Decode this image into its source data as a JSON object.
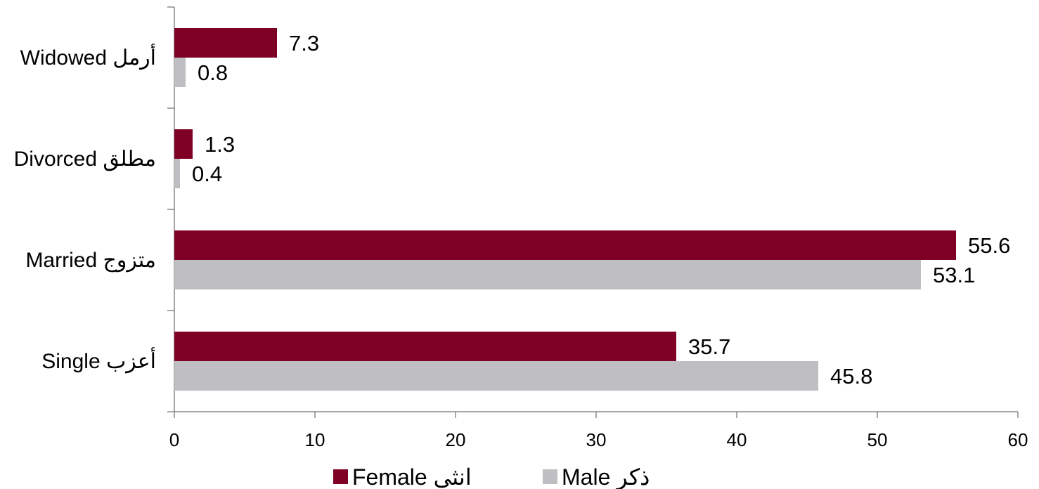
{
  "chart_data": {
    "type": "bar",
    "orientation": "horizontal",
    "categories": [
      "Widowed  أرمل",
      "Divorced مطلق",
      "Married متزوج",
      "Single   أعزب"
    ],
    "series": [
      {
        "name": "Female      انثى",
        "color": "#7f0025",
        "values": [
          7.3,
          1.3,
          55.6,
          35.7
        ],
        "labels": [
          "7.3",
          "1.3",
          "55.6",
          "35.7"
        ]
      },
      {
        "name": "Male          ذكر",
        "color": "#bfbfc3",
        "values": [
          0.8,
          0.4,
          53.1,
          45.8
        ],
        "labels": [
          "0.8",
          "0.4",
          "53.1",
          "45.8"
        ]
      }
    ],
    "xlim": [
      0,
      60
    ],
    "xticks": [
      "0",
      "10",
      "20",
      "30",
      "40",
      "50",
      "60"
    ],
    "grid": false,
    "legend_position": "bottom"
  }
}
